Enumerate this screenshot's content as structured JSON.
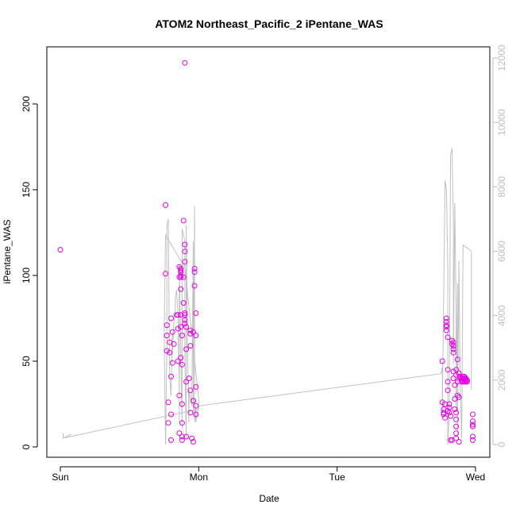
{
  "chart_data": {
    "type": "scatter",
    "title": "ATOM2 Northeast_Pacific_2 iPentane_WAS",
    "xlabel": "Date",
    "ylabel": "iPentane_WAS",
    "x_tick_labels": [
      "Sun",
      "Mon",
      "Tue",
      "Wed"
    ],
    "x_tick_values": [
      0,
      1,
      2,
      3
    ],
    "xlim": [
      -0.1,
      3.1
    ],
    "ylim": [
      -5,
      230
    ],
    "y_ticks": [
      0,
      50,
      100,
      150,
      200
    ],
    "y2_ticks": [
      0,
      2000,
      4000,
      6000,
      8000,
      10000,
      12000
    ],
    "y2lim": [
      -280,
      12300
    ],
    "grid": false,
    "colors": {
      "points": "#e600e6",
      "altitude_line": "#c0c0c0",
      "axis": "#000000",
      "secondary_axis": "#bebebe"
    },
    "series": [
      {
        "type": "scatter",
        "points": [
          [
            0.0,
            115
          ],
          [
            0.76,
            141
          ],
          [
            0.76,
            101
          ],
          [
            0.77,
            71
          ],
          [
            0.77,
            65
          ],
          [
            0.77,
            56
          ],
          [
            0.78,
            26
          ],
          [
            0.78,
            14
          ],
          [
            0.79,
            61
          ],
          [
            0.79,
            55
          ],
          [
            0.8,
            75
          ],
          [
            0.8,
            41
          ],
          [
            0.8,
            19
          ],
          [
            0.8,
            4
          ],
          [
            0.81,
            67
          ],
          [
            0.81,
            49
          ],
          [
            0.82,
            60
          ],
          [
            0.84,
            77
          ],
          [
            0.85,
            77
          ],
          [
            0.85,
            69
          ],
          [
            0.85,
            50
          ],
          [
            0.86,
            99
          ],
          [
            0.86,
            30
          ],
          [
            0.86,
            8
          ],
          [
            0.86,
            105
          ],
          [
            0.87,
            104
          ],
          [
            0.87,
            103
          ],
          [
            0.87,
            102
          ],
          [
            0.87,
            100
          ],
          [
            0.87,
            99
          ],
          [
            0.87,
            92
          ],
          [
            0.87,
            77
          ],
          [
            0.87,
            70
          ],
          [
            0.87,
            52
          ],
          [
            0.88,
            25
          ],
          [
            0.88,
            14
          ],
          [
            0.88,
            6
          ],
          [
            0.88,
            4
          ],
          [
            0.88,
            65
          ],
          [
            0.88,
            48
          ],
          [
            0.89,
            99
          ],
          [
            0.89,
            84
          ],
          [
            0.89,
            132
          ],
          [
            0.9,
            118
          ],
          [
            0.9,
            114
          ],
          [
            0.9,
            108
          ],
          [
            0.9,
            78
          ],
          [
            0.9,
            77
          ],
          [
            0.9,
            74
          ],
          [
            0.9,
            72
          ],
          [
            0.91,
            70
          ],
          [
            0.91,
            57
          ],
          [
            0.91,
            38
          ],
          [
            0.91,
            6
          ],
          [
            0.9,
            224
          ],
          [
            0.93,
            40
          ],
          [
            0.94,
            68
          ],
          [
            0.94,
            66
          ],
          [
            0.94,
            59
          ],
          [
            0.94,
            33
          ],
          [
            0.94,
            20
          ],
          [
            0.95,
            5
          ],
          [
            0.96,
            67
          ],
          [
            0.96,
            27
          ],
          [
            0.96,
            27
          ],
          [
            0.96,
            3
          ],
          [
            0.97,
            104
          ],
          [
            0.97,
            102
          ],
          [
            0.97,
            94
          ],
          [
            0.98,
            78
          ],
          [
            0.98,
            65
          ],
          [
            0.98,
            35
          ],
          [
            0.98,
            24
          ],
          [
            0.98,
            19
          ],
          [
            2.76,
            50
          ],
          [
            2.76,
            26
          ],
          [
            2.77,
            22
          ],
          [
            2.77,
            20
          ],
          [
            2.77,
            19
          ],
          [
            2.78,
            25
          ],
          [
            2.78,
            17
          ],
          [
            2.79,
            75
          ],
          [
            2.79,
            73
          ],
          [
            2.79,
            71
          ],
          [
            2.79,
            70
          ],
          [
            2.79,
            68
          ],
          [
            2.8,
            64
          ],
          [
            2.8,
            45
          ],
          [
            2.8,
            38
          ],
          [
            2.8,
            33
          ],
          [
            2.8,
            21
          ],
          [
            2.81,
            25
          ],
          [
            2.81,
            23
          ],
          [
            2.81,
            20
          ],
          [
            2.82,
            18
          ],
          [
            2.82,
            4
          ],
          [
            2.83,
            4
          ],
          [
            2.83,
            60
          ],
          [
            2.83,
            62
          ],
          [
            2.84,
            61
          ],
          [
            2.84,
            59
          ],
          [
            2.84,
            57
          ],
          [
            2.84,
            55
          ],
          [
            2.84,
            44
          ],
          [
            2.84,
            40
          ],
          [
            2.85,
            36
          ],
          [
            2.85,
            28
          ],
          [
            2.85,
            22
          ],
          [
            2.86,
            20
          ],
          [
            2.86,
            16
          ],
          [
            2.86,
            12
          ],
          [
            2.86,
            8
          ],
          [
            2.86,
            5
          ],
          [
            2.86,
            45
          ],
          [
            2.86,
            42
          ],
          [
            2.87,
            51
          ],
          [
            2.87,
            38
          ],
          [
            2.87,
            30
          ],
          [
            2.88,
            29
          ],
          [
            2.88,
            3
          ],
          [
            2.88,
            43
          ],
          [
            2.89,
            41
          ],
          [
            2.89,
            40
          ],
          [
            2.9,
            39
          ],
          [
            2.9,
            38
          ],
          [
            2.9,
            40
          ],
          [
            2.91,
            38
          ],
          [
            2.91,
            41
          ],
          [
            2.91,
            40
          ],
          [
            2.92,
            39
          ],
          [
            2.92,
            38
          ],
          [
            2.92,
            40
          ],
          [
            2.92,
            41
          ],
          [
            2.93,
            39
          ],
          [
            2.93,
            38
          ],
          [
            2.93,
            40
          ],
          [
            2.94,
            39
          ],
          [
            2.94,
            38
          ],
          [
            2.98,
            19
          ],
          [
            2.98,
            15
          ],
          [
            2.98,
            12
          ],
          [
            2.98,
            6
          ],
          [
            2.98,
            4
          ],
          [
            2.98,
            13
          ]
        ]
      },
      {
        "type": "line",
        "axis": "secondary",
        "points": [
          [
            0.02,
            350
          ],
          [
            0.02,
            200
          ],
          [
            0.08,
            320
          ],
          [
            0.02,
            200
          ],
          [
            1.0,
            1100
          ],
          [
            1.0,
            1400
          ],
          [
            0.9,
            5500
          ],
          [
            0.76,
            6500
          ],
          [
            0.75,
            3400
          ],
          [
            0.76,
            0
          ],
          [
            0.77,
            3000
          ],
          [
            0.77,
            6800
          ],
          [
            0.78,
            7000
          ],
          [
            0.79,
            2200
          ],
          [
            0.8,
            1500
          ],
          [
            0.81,
            3500
          ],
          [
            0.81,
            2800
          ],
          [
            0.82,
            3800
          ],
          [
            0.83,
            4200
          ],
          [
            0.83,
            4500
          ],
          [
            0.84,
            4800
          ],
          [
            0.85,
            4000
          ],
          [
            0.86,
            1500
          ],
          [
            0.86,
            700
          ],
          [
            0.86,
            5600
          ],
          [
            0.88,
            500
          ],
          [
            0.88,
            6700
          ],
          [
            0.9,
            6300
          ],
          [
            0.9,
            2600
          ],
          [
            0.91,
            200
          ],
          [
            0.91,
            6800
          ],
          [
            0.92,
            2700
          ],
          [
            0.93,
            700
          ],
          [
            0.93,
            1700
          ],
          [
            0.95,
            1200
          ],
          [
            0.96,
            6300
          ],
          [
            0.96,
            1000
          ],
          [
            0.97,
            7400
          ],
          [
            0.97,
            700
          ],
          [
            0.98,
            1200
          ],
          [
            0.98,
            700
          ],
          [
            1.0,
            1200
          ],
          [
            2.75,
            2200
          ],
          [
            2.76,
            2400
          ],
          [
            2.76,
            1000
          ],
          [
            2.78,
            8200
          ],
          [
            2.79,
            7900
          ],
          [
            2.8,
            5500
          ],
          [
            2.8,
            0
          ],
          [
            2.81,
            1200
          ],
          [
            2.82,
            9000
          ],
          [
            2.83,
            9200
          ],
          [
            2.84,
            7000
          ],
          [
            2.84,
            2500
          ],
          [
            2.85,
            7500
          ],
          [
            2.86,
            4000
          ],
          [
            2.86,
            1000
          ],
          [
            2.87,
            5000
          ],
          [
            2.87,
            300
          ],
          [
            2.88,
            5700
          ],
          [
            2.88,
            5500
          ],
          [
            2.89,
            1800
          ],
          [
            2.9,
            200
          ],
          [
            2.91,
            6200
          ],
          [
            2.97,
            6000
          ],
          [
            2.97,
            1700
          ]
        ]
      }
    ]
  }
}
